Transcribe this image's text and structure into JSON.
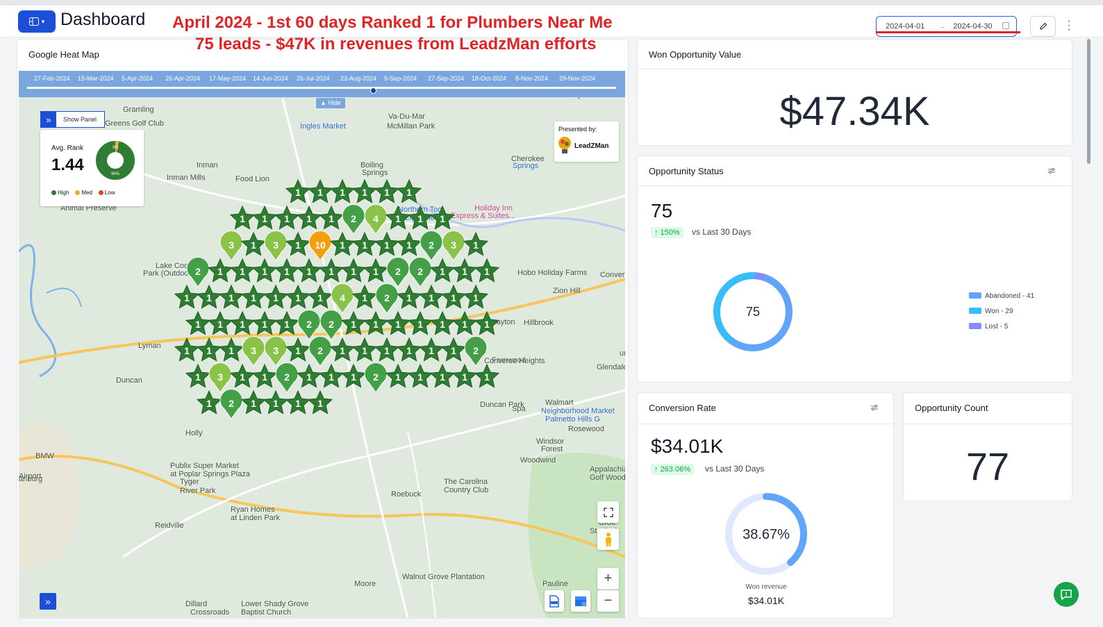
{
  "header": {
    "title": "Dashboard",
    "date_start": "2024-04-01",
    "date_end": "2024-04-30"
  },
  "annotations": {
    "line1": "April 2024 -  1st 60 days Ranked 1 for Plumbers Near Me",
    "line2": "75 leads - $47K in revenues from LeadzMan efforts"
  },
  "heatmap": {
    "title": "Google Heat Map",
    "timeline_dates": [
      "27-Feb-2024",
      "15-Mar-2024",
      "5-Apr-2024",
      "26-Apr-2024",
      "17-May-2024",
      "14-Jun-2024",
      "26-Jul-2024",
      "23-Aug-2024",
      "5-Sep-2024",
      "27-Sep-2024",
      "18-Oct-2024",
      "8-Nov-2024",
      "29-Nov-2024"
    ],
    "hide_label": "Hide",
    "show_panel_label": "Show Panel",
    "avg_rank_label": "Avg. Rank",
    "avg_rank_value": "1.44",
    "donut_top_label": "3%",
    "donut_bottom_label": "96%",
    "legend": {
      "high": "High",
      "med": "Med",
      "low": "Low"
    },
    "presented_by": "Presented by:",
    "logo_text": "LeadZMan",
    "place_labels": [
      "Gramling",
      "Greens Golf Club",
      "Inman",
      "Inman Mills",
      "Food Lion",
      "Animal Preserve",
      "Lake Cooley",
      "Park (Outdoor",
      "Lyman",
      "Duncan",
      "Ingles Market",
      "Va-Du-Mar",
      "McMillan Park",
      "Boiling",
      "Springs",
      "Cherokee",
      "Springs",
      "Northern Tool",
      "+ Equipment",
      "Holiday Inn",
      "Express & Suites...",
      "Hobo Holiday Farms",
      "Zion Hill",
      "Drayton",
      "Conver",
      "Glendale",
      "Walmart",
      "Neighborhood Market",
      "Palmetto Hills G",
      "Rosewood",
      "Windsor",
      "Forest",
      "Woodwind",
      "Appalachia",
      "Golf Woodwork",
      "Roebuck",
      "The Carolina",
      "Country Club",
      "Publix Super Market",
      "at Poplar Springs Plaza",
      "Tyger",
      "River Park",
      "Ryan Homes",
      "at Linden Park",
      "Reidville",
      "BMW",
      "anburg",
      "Airport",
      "Walnut Grove Plantation",
      "Moore",
      "Pauline",
      "Dillard",
      "Crossroads",
      "Lower Shady Grove",
      "Baptist Church",
      "Mayo",
      "Croft",
      "Sta Park",
      "Holly",
      "Fernwood",
      "Hillbrook",
      "Converse Heights",
      "Duncan Park",
      "Spa",
      "urg"
    ],
    "ranks": [
      "1",
      "1",
      "1",
      "1",
      "1",
      "1",
      "1",
      "1",
      "1",
      "1",
      "1",
      "2",
      "4",
      "1",
      "1",
      "1",
      "3",
      "1",
      "3",
      "1",
      "10",
      "1",
      "1",
      "1",
      "1",
      "2",
      "3",
      "1",
      "2",
      "1",
      "1",
      "1",
      "1",
      "1",
      "1",
      "1",
      "1",
      "2",
      "2",
      "1",
      "1",
      "1",
      "1",
      "1",
      "1",
      "1",
      "1",
      "1",
      "1",
      "4",
      "1",
      "2",
      "1",
      "1",
      "1",
      "1",
      "1",
      "1",
      "1",
      "1",
      "1",
      "2",
      "2",
      "1",
      "1",
      "1",
      "1",
      "1",
      "1",
      "1",
      "1",
      "1",
      "1",
      "3",
      "3",
      "1",
      "2",
      "1",
      "1",
      "1",
      "1",
      "1",
      "1",
      "2",
      "1",
      "3",
      "1",
      "1",
      "2",
      "1",
      "1",
      "1",
      "2",
      "1",
      "1",
      "1",
      "1",
      "1",
      "1",
      "2",
      "1",
      "1",
      "1",
      "1"
    ]
  },
  "won_value": {
    "title": "Won Opportunity Value",
    "value": "$47.34K"
  },
  "opportunity_status": {
    "title": "Opportunity Status",
    "total": "75",
    "change": "↑ 150%",
    "vs_text": "vs Last 30 Days",
    "center_label": "75",
    "chart_data": {
      "type": "pie",
      "categories": [
        "Abandoned",
        "Won",
        "Lost"
      ],
      "values": [
        41,
        29,
        5
      ],
      "legend_labels": [
        "Abandoned - 41",
        "Won - 29",
        "Lost - 5"
      ],
      "colors": [
        "#60a5fa",
        "#38bdf8",
        "#818cf8"
      ]
    }
  },
  "conversion_rate": {
    "title": "Conversion Rate",
    "value": "$34.01K",
    "change": "↑ 263.06%",
    "vs_text": "vs Last 30 Days",
    "gauge_label": "38.67%",
    "gauge_fraction": 0.3867,
    "won_revenue_label": "Won revenue",
    "won_revenue_value": "$34.01K"
  },
  "opportunity_count": {
    "title": "Opportunity Count",
    "value": "77"
  },
  "colors": {
    "accent": "#1d4ed8",
    "annotation": "#e02424",
    "marker_dark": "#2f7d32",
    "marker_light": "#8bc34a",
    "marker_orange": "#f59e0b"
  }
}
